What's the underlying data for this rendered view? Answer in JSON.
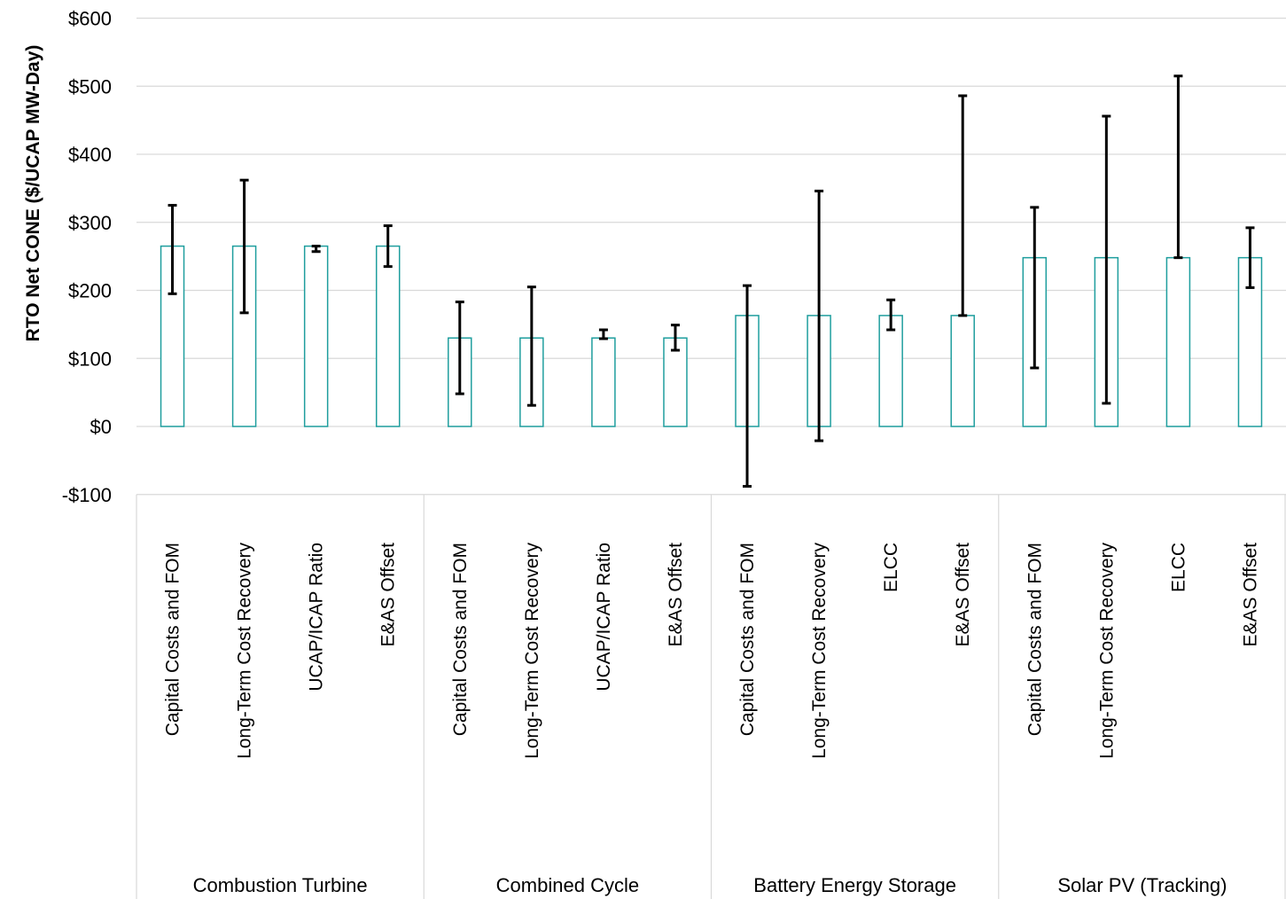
{
  "chart_data": {
    "type": "bar",
    "title": "",
    "ylabel": "RTO Net CONE ($/UCAP MW-Day)",
    "ylim": [
      -100,
      600
    ],
    "yticks": [
      -100,
      0,
      100,
      200,
      300,
      400,
      500,
      600
    ],
    "ytick_labels": [
      "-$100",
      "$0",
      "$100",
      "$200",
      "$300",
      "$400",
      "$500",
      "$600"
    ],
    "grid": "horizontal",
    "bar_color": "#1f9e9e",
    "error_bar_color": "#000000",
    "groups": [
      {
        "name": "Combustion Turbine",
        "categories": [
          "Capital Costs and FOM",
          "Long-Term Cost Recovery",
          "UCAP/ICAP Ratio",
          "E&AS Offset"
        ],
        "values": [
          265,
          265,
          265,
          265
        ],
        "low": [
          195,
          167,
          257,
          235
        ],
        "high": [
          325,
          362,
          265,
          295
        ]
      },
      {
        "name": "Combined Cycle",
        "categories": [
          "Capital Costs and FOM",
          "Long-Term Cost Recovery",
          "UCAP/ICAP Ratio",
          "E&AS Offset"
        ],
        "values": [
          130,
          130,
          130,
          130
        ],
        "low": [
          48,
          31,
          129,
          112
        ],
        "high": [
          183,
          205,
          142,
          149
        ]
      },
      {
        "name": "Battery Energy Storage",
        "categories": [
          "Capital Costs and FOM",
          "Long-Term Cost Recovery",
          "ELCC",
          "E&AS Offset"
        ],
        "values": [
          163,
          163,
          163,
          163
        ],
        "low": [
          -88,
          -21,
          142,
          163
        ],
        "high": [
          207,
          346,
          186,
          486
        ]
      },
      {
        "name": "Solar PV (Tracking)",
        "categories": [
          "Capital Costs and FOM",
          "Long-Term Cost Recovery",
          "ELCC",
          "E&AS Offset"
        ],
        "values": [
          248,
          248,
          248,
          248
        ],
        "low": [
          86,
          34,
          248,
          204
        ],
        "high": [
          322,
          456,
          515,
          292
        ]
      }
    ]
  }
}
